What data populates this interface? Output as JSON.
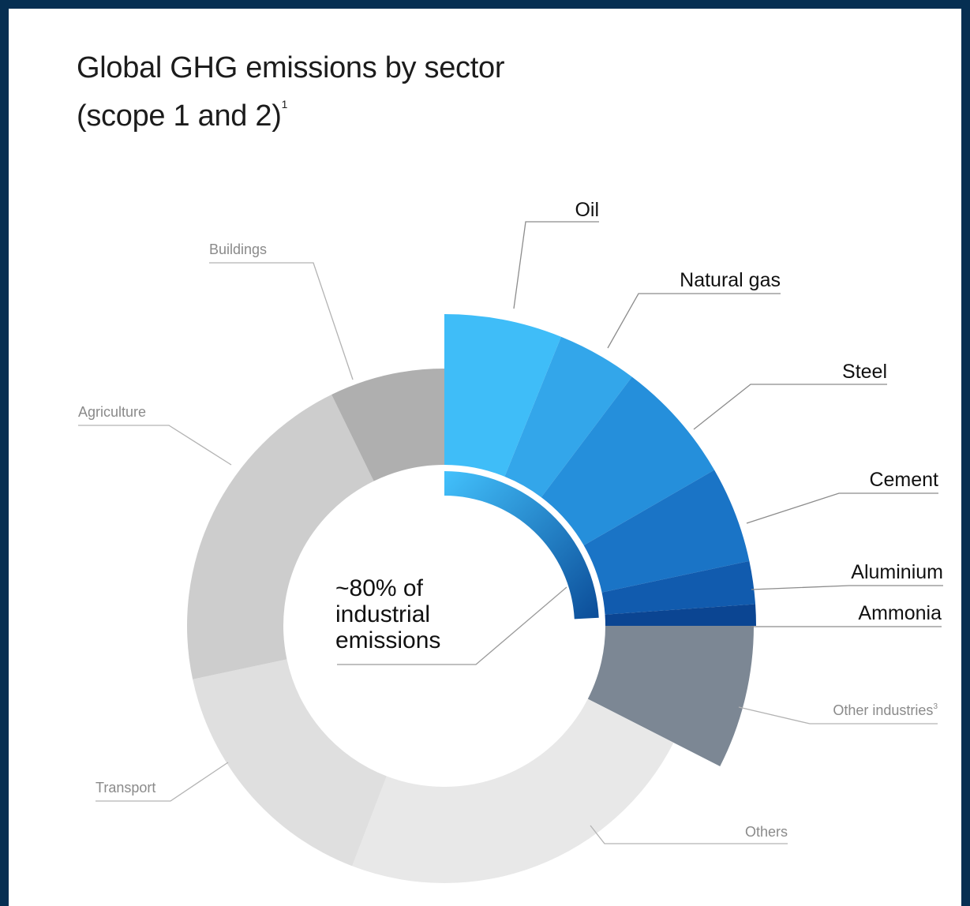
{
  "title": {
    "line1": "Global GHG emissions by sector",
    "line2": "(scope 1 and 2)",
    "footnote": "1"
  },
  "center_text": {
    "line1": "~80% of",
    "line2": "industrial",
    "line3": "emissions"
  },
  "colors": {
    "frame_border": "#062f52",
    "industrial_gradient_start": "#42c0fb",
    "industrial_gradient_end": "#0a4a96"
  },
  "chart_data": {
    "type": "donut",
    "title": "Global GHG emissions by sector (scope 1 and 2)",
    "highlighted_group": "industrial",
    "center_annotation": "~80% of industrial emissions",
    "segments": [
      {
        "name": "Oil",
        "group": "industrial",
        "color": "#3fbdf8",
        "label_sup": ""
      },
      {
        "name": "Natural gas",
        "group": "industrial",
        "color": "#33a6ea",
        "label_sup": ""
      },
      {
        "name": "Steel",
        "group": "industrial",
        "color": "#258fdb",
        "label_sup": ""
      },
      {
        "name": "Cement",
        "group": "industrial",
        "color": "#1a74c6",
        "label_sup": ""
      },
      {
        "name": "Aluminium",
        "group": "industrial",
        "color": "#115bae",
        "label_sup": ""
      },
      {
        "name": "Ammonia",
        "group": "industrial",
        "color": "#0b4592",
        "label_sup": ""
      },
      {
        "name": "Other industries",
        "group": "industrial",
        "color": "#7c8794",
        "label_sup": "3"
      },
      {
        "name": "Others",
        "group": "other",
        "color": "#e8e8e8",
        "label_sup": ""
      },
      {
        "name": "Transport",
        "group": "other",
        "color": "#dfdfdf",
        "label_sup": ""
      },
      {
        "name": "Agriculture",
        "group": "other",
        "color": "#cdcdcd",
        "label_sup": ""
      },
      {
        "name": "Buildings",
        "group": "other",
        "color": "#afafaf",
        "label_sup": ""
      }
    ]
  }
}
